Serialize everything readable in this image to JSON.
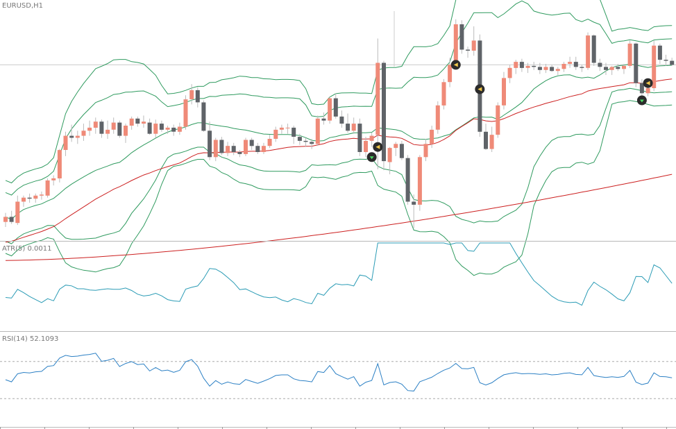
{
  "colors": {
    "background": "#ffffff",
    "bull": "#ef8a78",
    "bear": "#5f6368",
    "bands": "#2e9a5e",
    "ma": "#cc1f1f",
    "atr": "#2a9bb5",
    "rsi": "#2a7fc4",
    "separator": "#b8b8b8",
    "level": "#aaaaaa"
  },
  "chart_data": [
    {
      "type": "candlestick",
      "title": "EURUSD,H1",
      "crosshair_price": 1.1788,
      "ylim": [
        1.1615,
        1.1852
      ],
      "ohlc": [
        [
          1.1633,
          1.1642,
          1.1628,
          1.1638
        ],
        [
          1.1638,
          1.1644,
          1.1631,
          1.1633
        ],
        [
          1.1632,
          1.1659,
          1.163,
          1.1653
        ],
        [
          1.1653,
          1.1659,
          1.1648,
          1.1657
        ],
        [
          1.1657,
          1.1661,
          1.1652,
          1.1656
        ],
        [
          1.1656,
          1.1661,
          1.1652,
          1.1659
        ],
        [
          1.1659,
          1.1663,
          1.1655,
          1.166
        ],
        [
          1.1659,
          1.1676,
          1.1657,
          1.1674
        ],
        [
          1.1674,
          1.1679,
          1.1669,
          1.1676
        ],
        [
          1.1676,
          1.1705,
          1.1672,
          1.1704
        ],
        [
          1.1704,
          1.1722,
          1.1698,
          1.1718
        ],
        [
          1.1718,
          1.1729,
          1.1712,
          1.1716
        ],
        [
          1.1716,
          1.1723,
          1.171,
          1.1718
        ],
        [
          1.1718,
          1.173,
          1.1713,
          1.1723
        ],
        [
          1.1723,
          1.1733,
          1.1718,
          1.1726
        ],
        [
          1.1726,
          1.1736,
          1.172,
          1.1732
        ],
        [
          1.1732,
          1.1734,
          1.1716,
          1.172
        ],
        [
          1.172,
          1.1733,
          1.1715,
          1.1724
        ],
        [
          1.1724,
          1.1736,
          1.172,
          1.1731
        ],
        [
          1.1731,
          1.1733,
          1.1716,
          1.1718
        ],
        [
          1.1718,
          1.173,
          1.1711,
          1.1728
        ],
        [
          1.1728,
          1.1737,
          1.1724,
          1.1735
        ],
        [
          1.1735,
          1.1737,
          1.1727,
          1.173
        ],
        [
          1.173,
          1.1738,
          1.1726,
          1.1732
        ],
        [
          1.1731,
          1.1735,
          1.1719,
          1.172
        ],
        [
          1.172,
          1.1734,
          1.1716,
          1.173
        ],
        [
          1.173,
          1.1733,
          1.1722,
          1.1724
        ],
        [
          1.1724,
          1.1728,
          1.172,
          1.1726
        ],
        [
          1.1726,
          1.1729,
          1.1718,
          1.1722
        ],
        [
          1.1722,
          1.1731,
          1.1719,
          1.1727
        ],
        [
          1.1727,
          1.1758,
          1.1724,
          1.1754
        ],
        [
          1.1754,
          1.1769,
          1.1749,
          1.1763
        ],
        [
          1.1763,
          1.1766,
          1.1746,
          1.1751
        ],
        [
          1.1751,
          1.1753,
          1.1722,
          1.1723
        ],
        [
          1.1723,
          1.1732,
          1.1694,
          1.1697
        ],
        [
          1.1697,
          1.1716,
          1.1693,
          1.1714
        ],
        [
          1.1714,
          1.1717,
          1.1699,
          1.1701
        ],
        [
          1.1701,
          1.1712,
          1.1698,
          1.1708
        ],
        [
          1.1708,
          1.1711,
          1.1699,
          1.1702
        ],
        [
          1.1702,
          1.1704,
          1.1697,
          1.17
        ],
        [
          1.17,
          1.1716,
          1.1698,
          1.1714
        ],
        [
          1.1714,
          1.1716,
          1.1704,
          1.1708
        ],
        [
          1.1708,
          1.1711,
          1.17,
          1.1702
        ],
        [
          1.1702,
          1.1711,
          1.17,
          1.1708
        ],
        [
          1.1708,
          1.1719,
          1.1706,
          1.1715
        ],
        [
          1.1715,
          1.1727,
          1.1712,
          1.1724
        ],
        [
          1.1724,
          1.1729,
          1.172,
          1.1726
        ],
        [
          1.1726,
          1.173,
          1.172,
          1.1726
        ],
        [
          1.1726,
          1.1728,
          1.171,
          1.1717
        ],
        [
          1.1717,
          1.172,
          1.1709,
          1.1713
        ],
        [
          1.1713,
          1.1716,
          1.1707,
          1.1712
        ],
        [
          1.1712,
          1.1715,
          1.1705,
          1.171
        ],
        [
          1.171,
          1.1738,
          1.1708,
          1.1735
        ],
        [
          1.1735,
          1.1741,
          1.1729,
          1.1733
        ],
        [
          1.1733,
          1.1757,
          1.173,
          1.1755
        ],
        [
          1.1755,
          1.176,
          1.1735,
          1.1737
        ],
        [
          1.1737,
          1.1743,
          1.1726,
          1.173
        ],
        [
          1.173,
          1.174,
          1.1721,
          1.1723
        ],
        [
          1.1723,
          1.1736,
          1.172,
          1.173
        ],
        [
          1.173,
          1.1735,
          1.1698,
          1.1702
        ],
        [
          1.1702,
          1.1717,
          1.1697,
          1.1713
        ],
        [
          1.1713,
          1.1721,
          1.1707,
          1.1718
        ],
        [
          1.1719,
          1.1814,
          1.1685,
          1.179
        ],
        [
          1.179,
          1.1792,
          1.1684,
          1.1693
        ],
        [
          1.1692,
          1.1707,
          1.168,
          1.1706
        ],
        [
          1.1706,
          1.1712,
          1.1698,
          1.171
        ],
        [
          1.171,
          1.1713,
          1.1694,
          1.1696
        ],
        [
          1.1696,
          1.1699,
          1.165,
          1.1653
        ],
        [
          1.1653,
          1.166,
          1.1627,
          1.165
        ],
        [
          1.165,
          1.1699,
          1.1644,
          1.1697
        ],
        [
          1.1697,
          1.1715,
          1.1693,
          1.171
        ],
        [
          1.171,
          1.1728,
          1.1706,
          1.1724
        ],
        [
          1.1724,
          1.1752,
          1.172,
          1.1748
        ],
        [
          1.1748,
          1.1774,
          1.1744,
          1.1771
        ],
        [
          1.1771,
          1.1795,
          1.1766,
          1.1788
        ],
        [
          1.1788,
          1.1833,
          1.1784,
          1.1828
        ],
        [
          1.1828,
          1.1832,
          1.1799,
          1.1803
        ],
        [
          1.1803,
          1.1806,
          1.1795,
          1.1802
        ],
        [
          1.1802,
          1.1826,
          1.1797,
          1.1812
        ],
        [
          1.1812,
          1.1818,
          1.1717,
          1.1722
        ],
        [
          1.1722,
          1.173,
          1.1704,
          1.1705
        ],
        [
          1.1705,
          1.1727,
          1.1702,
          1.1719
        ],
        [
          1.1719,
          1.1751,
          1.1716,
          1.1748
        ],
        [
          1.1748,
          1.1781,
          1.1744,
          1.1775
        ],
        [
          1.1775,
          1.1788,
          1.177,
          1.1785
        ],
        [
          1.1785,
          1.1793,
          1.1779,
          1.1791
        ],
        [
          1.1791,
          1.1794,
          1.1781,
          1.1785
        ],
        [
          1.1785,
          1.179,
          1.178,
          1.1787
        ],
        [
          1.1787,
          1.1791,
          1.1783,
          1.1786
        ],
        [
          1.1786,
          1.179,
          1.1779,
          1.1783
        ],
        [
          1.1783,
          1.1789,
          1.178,
          1.1786
        ],
        [
          1.1786,
          1.1788,
          1.1781,
          1.1782
        ],
        [
          1.1782,
          1.1786,
          1.1778,
          1.1784
        ],
        [
          1.1784,
          1.1791,
          1.1781,
          1.1789
        ],
        [
          1.1789,
          1.1796,
          1.1785,
          1.1791
        ],
        [
          1.1791,
          1.1796,
          1.1783,
          1.1786
        ],
        [
          1.1786,
          1.1788,
          1.1781,
          1.1785
        ],
        [
          1.1785,
          1.182,
          1.1783,
          1.1817
        ],
        [
          1.1817,
          1.1818,
          1.1787,
          1.179
        ],
        [
          1.179,
          1.1794,
          1.1782,
          1.1786
        ],
        [
          1.1786,
          1.179,
          1.1778,
          1.1783
        ],
        [
          1.1783,
          1.1787,
          1.1778,
          1.1786
        ],
        [
          1.1786,
          1.1789,
          1.1782,
          1.1784
        ],
        [
          1.1784,
          1.1789,
          1.1779,
          1.1787
        ],
        [
          1.1787,
          1.1812,
          1.1785,
          1.1809
        ],
        [
          1.1809,
          1.181,
          1.1766,
          1.177
        ],
        [
          1.177,
          1.1774,
          1.1753,
          1.176
        ],
        [
          1.176,
          1.1768,
          1.1757,
          1.1765
        ],
        [
          1.1765,
          1.1812,
          1.1762,
          1.1807
        ],
        [
          1.1807,
          1.1809,
          1.1789,
          1.1793
        ],
        [
          1.1793,
          1.1798,
          1.1787,
          1.1792
        ],
        [
          1.1792,
          1.1795,
          1.1787,
          1.1788
        ]
      ],
      "signals": [
        {
          "bar": 61,
          "price": 1.1697,
          "kind": "buy"
        },
        {
          "bar": 62,
          "price": 1.1707,
          "kind": "sell"
        },
        {
          "bar": 75,
          "price": 1.1788,
          "kind": "sell"
        },
        {
          "bar": 79,
          "price": 1.1764,
          "kind": "sell"
        },
        {
          "bar": 106,
          "price": 1.1753,
          "kind": "buy"
        },
        {
          "bar": 107,
          "price": 1.177,
          "kind": "sell"
        }
      ]
    },
    {
      "type": "line",
      "title": "ATR(5) 0.0011",
      "ylim": [
        0.0003,
        0.0033
      ]
    },
    {
      "type": "line",
      "title": "RSI(14) 52.1093",
      "ylim": [
        0,
        100
      ],
      "levels": [
        70,
        30
      ]
    }
  ]
}
